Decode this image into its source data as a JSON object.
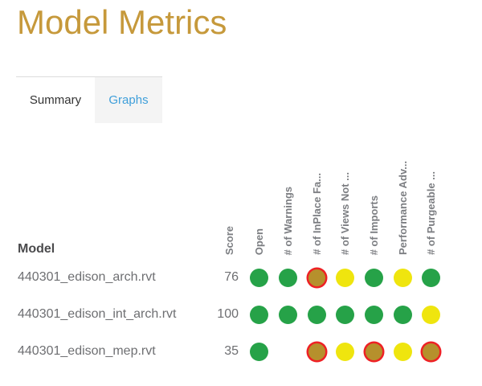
{
  "page": {
    "title": "Model Metrics"
  },
  "tabs": [
    {
      "label": "Summary",
      "active": true
    },
    {
      "label": "Graphs",
      "active": false
    }
  ],
  "table": {
    "model_header": "Model",
    "score_header": "Score",
    "columns": [
      "Open",
      "# of Warnings",
      "# of InPlace Fa...",
      "# of Views Not ...",
      "# of Imports",
      "Performance Adv...",
      "# of Purgeable ..."
    ],
    "rows": [
      {
        "model": "440301_edison_arch.rvt",
        "score": "76",
        "dots": [
          "good",
          "good",
          "warning",
          "caution",
          "good",
          "caution",
          "good"
        ]
      },
      {
        "model": "440301_edison_int_arch.rvt",
        "score": "100",
        "dots": [
          "good",
          "good",
          "good",
          "good",
          "good",
          "good",
          "caution"
        ]
      },
      {
        "model": "440301_edison_mep.rvt",
        "score": "35",
        "dots": [
          "good",
          "none",
          "warning",
          "caution",
          "warning",
          "caution",
          "warning"
        ]
      }
    ]
  },
  "colors": {
    "title": "#C6993B",
    "tab_link": "#3F9FDA",
    "green": "#26A248",
    "yellow": "#EFE50E",
    "dark_yellow": "#B6902C",
    "flag_border": "#EE2024"
  }
}
